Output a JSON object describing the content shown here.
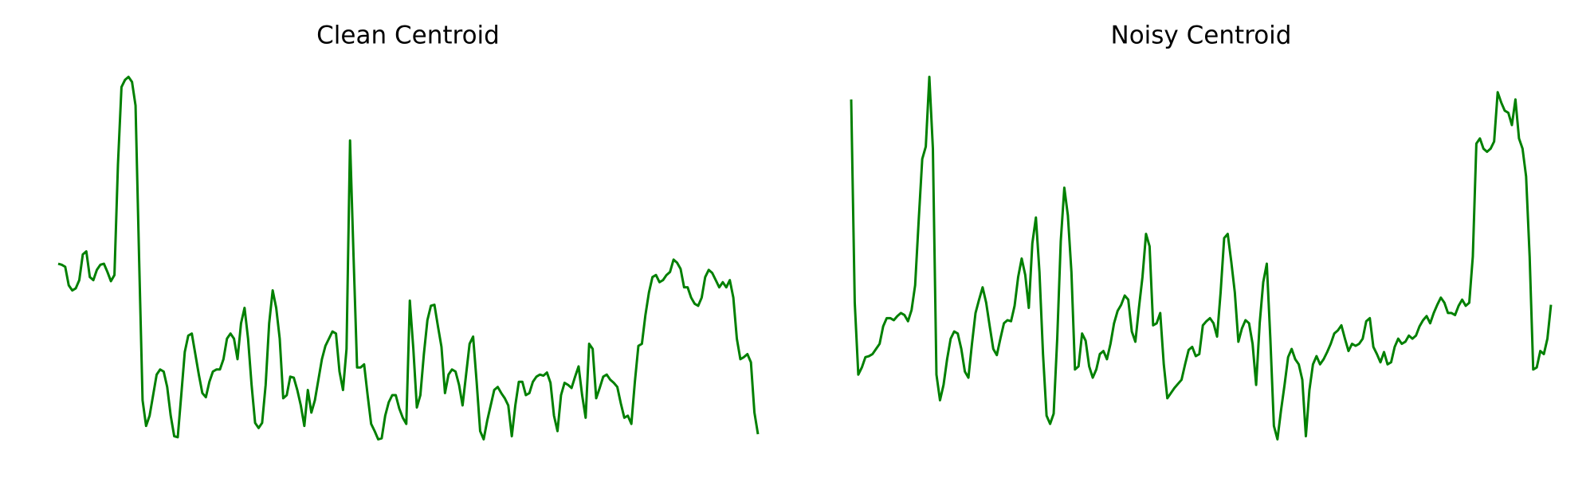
{
  "chart_data": [
    {
      "type": "line",
      "title": "Clean Centroid",
      "color": "#008000",
      "ylim": [
        0,
        360
      ],
      "series": [
        {
          "values": [
            173,
            172,
            170,
            152,
            147,
            149,
            157,
            182,
            185,
            160,
            157,
            167,
            172,
            173,
            165,
            156,
            162,
            270,
            345,
            352,
            355,
            350,
            327,
            180,
            40,
            15,
            25,
            45,
            65,
            70,
            68,
            53,
            25,
            5,
            4,
            45,
            87,
            103,
            105,
            85,
            65,
            47,
            43,
            58,
            68,
            70,
            70,
            80,
            100,
            105,
            100,
            80,
            115,
            130,
            100,
            55,
            18,
            13,
            18,
            55,
            115,
            147,
            130,
            100,
            42,
            45,
            63,
            62,
            50,
            35,
            15,
            50,
            28,
            40,
            60,
            80,
            93,
            100,
            107,
            105,
            68,
            50,
            90,
            293,
            180,
            72,
            72,
            75,
            45,
            17,
            10,
            2,
            3,
            25,
            38,
            45,
            45,
            32,
            23,
            17,
            137,
            90,
            33,
            45,
            85,
            118,
            132,
            133,
            112,
            92,
            47,
            65,
            70,
            68,
            55,
            35,
            65,
            95,
            102,
            58,
            10,
            2,
            20,
            35,
            50,
            53,
            47,
            42,
            35,
            5,
            35,
            58,
            58,
            45,
            47,
            58,
            63,
            65,
            64,
            67,
            57,
            25,
            10,
            45,
            57,
            55,
            52,
            63,
            73,
            45,
            23,
            95,
            90,
            42,
            52,
            63,
            65,
            60,
            57,
            53,
            37,
            23,
            25,
            17,
            58,
            93,
            95,
            123,
            145,
            160,
            162,
            155,
            157,
            162,
            165,
            177,
            174,
            168,
            150,
            150,
            140,
            134,
            132,
            140,
            160,
            167,
            164,
            157,
            150,
            155,
            150,
            157,
            140,
            100,
            80,
            82,
            85,
            77,
            28,
            7
          ]
        }
      ]
    },
    {
      "type": "line",
      "title": "Noisy Centroid",
      "color": "#008000",
      "ylim": [
        0,
        360
      ],
      "series": [
        {
          "values": [
            333,
            135,
            65,
            72,
            82,
            83,
            85,
            90,
            95,
            112,
            120,
            120,
            118,
            122,
            125,
            123,
            117,
            128,
            152,
            215,
            275,
            287,
            355,
            285,
            65,
            40,
            55,
            80,
            100,
            107,
            105,
            90,
            68,
            62,
            95,
            125,
            138,
            150,
            135,
            112,
            90,
            84,
            100,
            115,
            118,
            117,
            132,
            160,
            178,
            162,
            130,
            193,
            218,
            165,
            85,
            25,
            17,
            27,
            100,
            195,
            247,
            220,
            165,
            70,
            73,
            105,
            98,
            73,
            62,
            70,
            85,
            88,
            80,
            95,
            115,
            127,
            133,
            142,
            138,
            107,
            97,
            130,
            160,
            202,
            190,
            113,
            115,
            125,
            75,
            42,
            47,
            52,
            56,
            60,
            75,
            89,
            92,
            83,
            85,
            113,
            117,
            120,
            115,
            102,
            145,
            198,
            202,
            175,
            145,
            97,
            110,
            118,
            115,
            95,
            55,
            115,
            155,
            173,
            100,
            15,
            2,
            30,
            55,
            82,
            90,
            80,
            75,
            60,
            5,
            50,
            75,
            83,
            75,
            80,
            87,
            95,
            105,
            108,
            113,
            100,
            88,
            95,
            93,
            95,
            100,
            117,
            120,
            92,
            85,
            77,
            87,
            75,
            77,
            92,
            100,
            95,
            97,
            103,
            100,
            103,
            112,
            118,
            122,
            115,
            125,
            133,
            140,
            135,
            125,
            125,
            123,
            132,
            138,
            132,
            135,
            180,
            290,
            295,
            285,
            282,
            285,
            292,
            340,
            330,
            322,
            320,
            308,
            333,
            295,
            285,
            258,
            180,
            70,
            72,
            88,
            85,
            100,
            133
          ]
        }
      ]
    }
  ]
}
